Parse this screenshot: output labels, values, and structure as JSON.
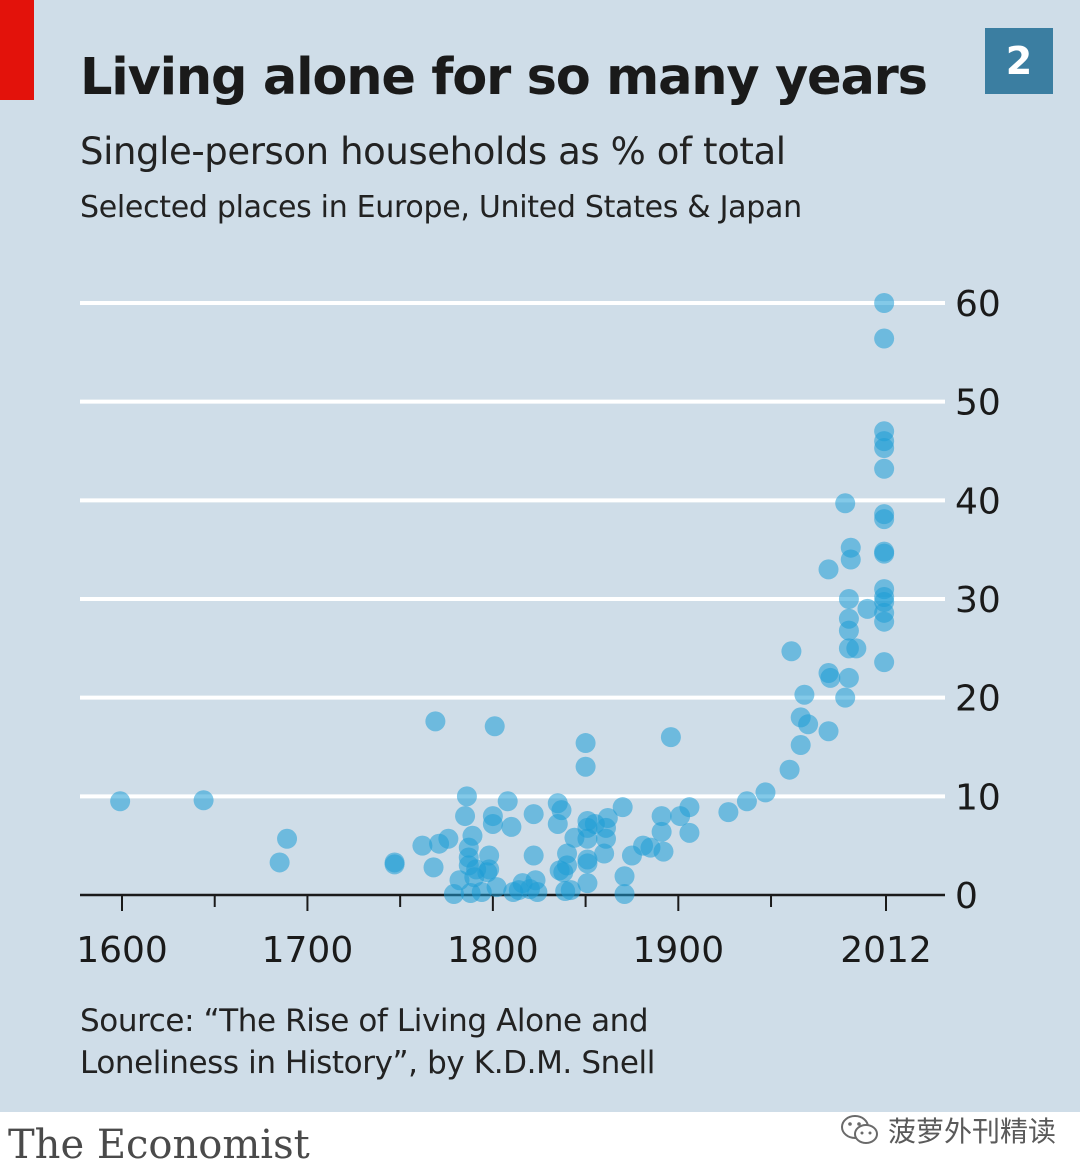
{
  "header": {
    "chart_number": "2",
    "title": "Living alone for so many years",
    "subtitle": "Single-person households as % of total",
    "subtitle2": "Selected places in Europe, United States & Japan"
  },
  "footer": {
    "source_line1": "Source: “The Rise of Living Alone and",
    "source_line2": "Loneliness in History”, by K.D.M. Snell",
    "brand": "The Economist",
    "watermark": "菠萝外刊精读"
  },
  "colors": {
    "background": "#cfdde8",
    "accent_red": "#e3120b",
    "badge": "#3b7ea1",
    "dot": "#1e9cd6"
  },
  "chart_data": {
    "type": "scatter",
    "title": "Living alone for so many years",
    "subtitle": "Single-person households as % of total",
    "xlabel": "",
    "ylabel": "",
    "xlim": [
      1580,
      2040
    ],
    "ylim": [
      0,
      60
    ],
    "x_ticks": [
      1600,
      1700,
      1800,
      1900,
      2012
    ],
    "x_minor_ticks": [
      1650,
      1750,
      1850,
      1950
    ],
    "y_ticks": [
      0,
      10,
      20,
      30,
      40,
      50,
      60
    ],
    "grid": true,
    "y_axis_position": "right",
    "series": [
      {
        "name": "Single-person households",
        "points": [
          [
            1599,
            9.5
          ],
          [
            1644,
            9.6
          ],
          [
            1685,
            3.3
          ],
          [
            1689,
            5.7
          ],
          [
            1747,
            3.1
          ],
          [
            1747,
            3.3
          ],
          [
            1762,
            5.0
          ],
          [
            1768,
            2.8
          ],
          [
            1769,
            17.6
          ],
          [
            1771,
            5.2
          ],
          [
            1776,
            5.7
          ],
          [
            1779,
            0.1
          ],
          [
            1782,
            1.5
          ],
          [
            1785,
            8.0
          ],
          [
            1786,
            10.0
          ],
          [
            1787,
            3.0
          ],
          [
            1787,
            3.8
          ],
          [
            1787,
            4.8
          ],
          [
            1788,
            0.2
          ],
          [
            1789,
            6.0
          ],
          [
            1790,
            1.8
          ],
          [
            1791,
            2.6
          ],
          [
            1794,
            0.3
          ],
          [
            1797,
            2.3
          ],
          [
            1798,
            4.0
          ],
          [
            1798,
            2.6
          ],
          [
            1800,
            8.0
          ],
          [
            1800,
            7.2
          ],
          [
            1801,
            17.1
          ],
          [
            1802,
            0.8
          ],
          [
            1808,
            9.5
          ],
          [
            1810,
            6.9
          ],
          [
            1811,
            0.3
          ],
          [
            1814,
            0.5
          ],
          [
            1816,
            1.2
          ],
          [
            1820,
            0.6
          ],
          [
            1822,
            8.2
          ],
          [
            1822,
            4.0
          ],
          [
            1823,
            1.5
          ],
          [
            1824,
            0.3
          ],
          [
            1835,
            9.3
          ],
          [
            1835,
            7.2
          ],
          [
            1836,
            2.5
          ],
          [
            1837,
            8.6
          ],
          [
            1838,
            2.3
          ],
          [
            1839,
            0.4
          ],
          [
            1840,
            4.2
          ],
          [
            1840,
            3.0
          ],
          [
            1842,
            0.5
          ],
          [
            1844,
            5.8
          ],
          [
            1850,
            15.4
          ],
          [
            1850,
            13.0
          ],
          [
            1851,
            7.5
          ],
          [
            1851,
            6.8
          ],
          [
            1851,
            5.7
          ],
          [
            1851,
            3.6
          ],
          [
            1851,
            3.2
          ],
          [
            1851,
            1.2
          ],
          [
            1855,
            7.2
          ],
          [
            1860,
            4.2
          ],
          [
            1861,
            5.7
          ],
          [
            1861,
            6.8
          ],
          [
            1862,
            7.8
          ],
          [
            1870,
            8.9
          ],
          [
            1871,
            1.9
          ],
          [
            1871,
            0.1
          ],
          [
            1875,
            4.0
          ],
          [
            1881,
            5.0
          ],
          [
            1885,
            4.8
          ],
          [
            1891,
            8.0
          ],
          [
            1891,
            6.4
          ],
          [
            1892,
            4.4
          ],
          [
            1896,
            16.0
          ],
          [
            1901,
            8.0
          ],
          [
            1906,
            6.3
          ],
          [
            1906,
            8.9
          ],
          [
            1927,
            8.4
          ],
          [
            1937,
            9.5
          ],
          [
            1947,
            10.4
          ],
          [
            1960,
            12.7
          ],
          [
            1961,
            24.7
          ],
          [
            1966,
            15.2
          ],
          [
            1966,
            18.0
          ],
          [
            1968,
            20.3
          ],
          [
            1970,
            17.3
          ],
          [
            1981,
            16.6
          ],
          [
            1981,
            22.5
          ],
          [
            1981,
            33.0
          ],
          [
            1982,
            22.0
          ],
          [
            1990,
            39.7
          ],
          [
            1990,
            20.0
          ],
          [
            1992,
            22.0
          ],
          [
            1992,
            25.0
          ],
          [
            1992,
            26.8
          ],
          [
            1992,
            28.0
          ],
          [
            1992,
            30.0
          ],
          [
            1993,
            34.0
          ],
          [
            1993,
            35.2
          ],
          [
            1996,
            25.0
          ],
          [
            2002,
            29.0
          ],
          [
            2011,
            60.0
          ],
          [
            2011,
            56.4
          ],
          [
            2011,
            47.0
          ],
          [
            2011,
            46.0
          ],
          [
            2011,
            45.3
          ],
          [
            2011,
            43.2
          ],
          [
            2011,
            38.6
          ],
          [
            2011,
            38.1
          ],
          [
            2011,
            34.8
          ],
          [
            2011,
            34.6
          ],
          [
            2011,
            31.0
          ],
          [
            2011,
            30.2
          ],
          [
            2011,
            29.7
          ],
          [
            2011,
            28.6
          ],
          [
            2011,
            27.7
          ],
          [
            2011,
            23.6
          ]
        ]
      }
    ]
  }
}
